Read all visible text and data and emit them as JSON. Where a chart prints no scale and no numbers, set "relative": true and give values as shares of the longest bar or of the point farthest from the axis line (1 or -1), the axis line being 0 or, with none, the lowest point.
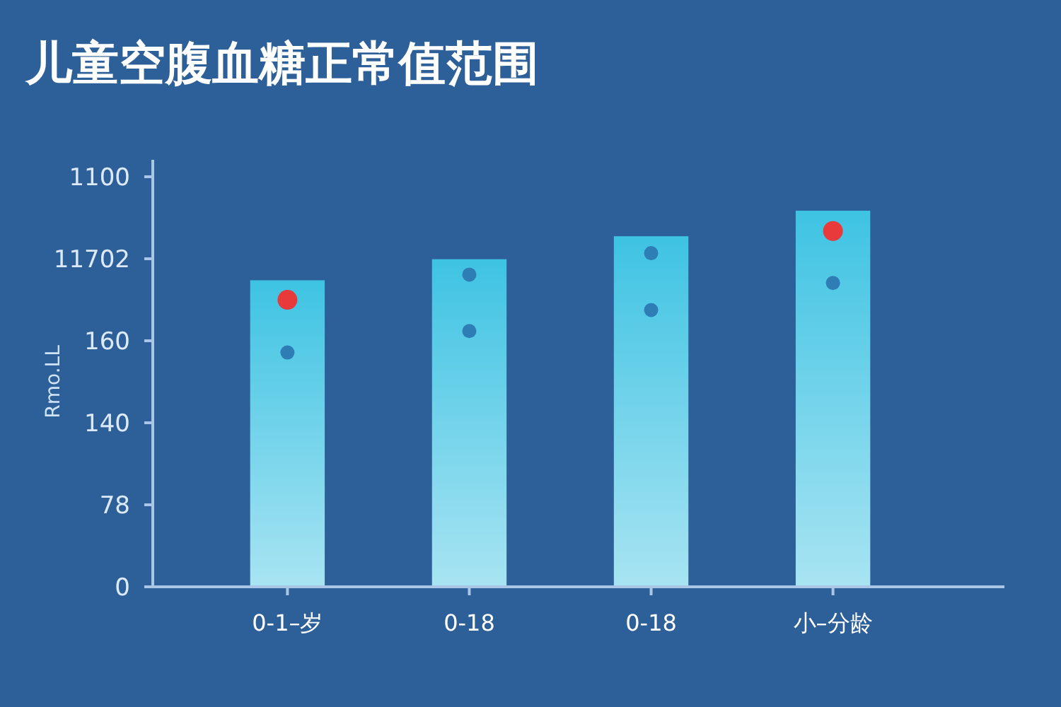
{
  "chart_data": {
    "type": "bar",
    "title": "儿童空腹血糖正常值范围",
    "ylabel": "Rmo.LL",
    "relative": true,
    "annotations": [
      "0",
      "78",
      "140",
      "160",
      "11702",
      "1100"
    ],
    "categories": [
      "0-1–岁",
      "0-18",
      "0-18",
      "小–分龄"
    ],
    "marker": "circle",
    "series": [
      {
        "type": "bar",
        "color": "#3ec3e3",
        "values": [
          0.815,
          0.871,
          0.932,
          1
        ]
      },
      {
        "type": "scatter",
        "color": "#2f7db5",
        "values": [
          null,
          0.83,
          0.887,
          null
        ]
      },
      {
        "type": "scatter",
        "color": "#2f7db5",
        "values": [
          0.623,
          0.68,
          0.736,
          0.808
        ]
      },
      {
        "type": "scatter",
        "color": "#e8393b",
        "values": [
          0.763,
          null,
          null,
          0.946
        ]
      }
    ]
  }
}
